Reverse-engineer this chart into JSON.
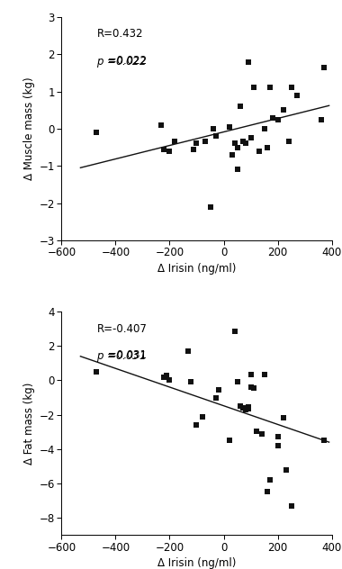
{
  "plot1": {
    "xlabel": "Δ Irisin (ng/ml)",
    "ylabel": "Δ Muscle mass (kg)",
    "xlim": [
      -600,
      400
    ],
    "ylim": [
      -3,
      3
    ],
    "xticks": [
      -600,
      -400,
      -200,
      0,
      200,
      400
    ],
    "yticks": [
      -3,
      -2,
      -1,
      0,
      1,
      2,
      3
    ],
    "R_text": "R=0.432",
    "p_text": " =0.022",
    "scatter_x": [
      -470,
      -230,
      -220,
      -200,
      -180,
      -110,
      -100,
      -70,
      -50,
      -40,
      -30,
      20,
      30,
      40,
      50,
      50,
      60,
      70,
      80,
      90,
      100,
      110,
      130,
      150,
      160,
      170,
      180,
      200,
      220,
      240,
      250,
      270,
      360,
      370
    ],
    "scatter_y": [
      -0.1,
      0.1,
      -0.55,
      -0.6,
      -0.35,
      -0.55,
      -0.4,
      -0.35,
      -2.1,
      0.0,
      -0.2,
      0.05,
      -0.7,
      -0.4,
      -0.5,
      -1.1,
      0.6,
      -0.35,
      -0.4,
      1.8,
      -0.25,
      1.1,
      -0.6,
      0.0,
      -0.5,
      1.1,
      0.3,
      0.25,
      0.5,
      -0.35,
      1.1,
      0.9,
      0.25,
      1.65
    ],
    "line_x": [
      -530,
      390
    ],
    "line_y": [
      -1.05,
      0.62
    ]
  },
  "plot2": {
    "xlabel": "Δ Irisin (ng/ml)",
    "ylabel": "Δ Fat mass (kg)",
    "xlim": [
      -600,
      400
    ],
    "ylim": [
      -9,
      4
    ],
    "xticks": [
      -600,
      -400,
      -200,
      0,
      200,
      400
    ],
    "yticks": [
      -8,
      -6,
      -4,
      -2,
      0,
      2,
      4
    ],
    "R_text": "R=-0.407",
    "p_text": " =0.031",
    "scatter_x": [
      -470,
      -220,
      -210,
      -200,
      -130,
      -120,
      -100,
      -80,
      -30,
      -20,
      20,
      40,
      50,
      60,
      70,
      80,
      90,
      90,
      100,
      100,
      110,
      120,
      140,
      150,
      160,
      170,
      200,
      200,
      220,
      230,
      250,
      370
    ],
    "scatter_y": [
      0.5,
      0.2,
      0.3,
      0.0,
      1.7,
      -0.1,
      -2.6,
      -2.1,
      -1.0,
      -0.55,
      -3.5,
      2.85,
      -0.1,
      -1.5,
      -1.6,
      -1.7,
      -1.55,
      -1.65,
      -0.4,
      0.35,
      -0.45,
      -2.95,
      -3.1,
      0.35,
      -6.5,
      -5.8,
      -3.8,
      -3.3,
      -2.2,
      -5.2,
      -7.3,
      -3.5
    ],
    "line_x": [
      -530,
      390
    ],
    "line_y": [
      1.4,
      -3.6
    ]
  },
  "background_color": "#ffffff",
  "scatter_color": "#111111",
  "line_color": "#111111",
  "marker_size": 22,
  "font_size": 8.5,
  "label_font_size": 8.5,
  "annotation_font_size": 8.5
}
